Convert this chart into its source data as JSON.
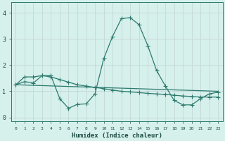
{
  "xlabel": "Humidex (Indice chaleur)",
  "bg_color": "#d6f0ec",
  "line_color": "#2d7a6e",
  "grid_color": "#c8dbd8",
  "xticks": [
    0,
    1,
    2,
    3,
    4,
    5,
    6,
    7,
    8,
    9,
    10,
    11,
    12,
    13,
    14,
    15,
    16,
    17,
    18,
    19,
    20,
    21,
    22,
    23
  ],
  "yticks": [
    0,
    1,
    2,
    3,
    4
  ],
  "xlim": [
    -0.5,
    23.5
  ],
  "ylim": [
    -0.15,
    4.4
  ],
  "line1_x": [
    0,
    1,
    2,
    3,
    4,
    5,
    6,
    7,
    8,
    9,
    10,
    11,
    12,
    13,
    14,
    15,
    16,
    17,
    18,
    19,
    20,
    21,
    22,
    23
  ],
  "line1_y": [
    1.25,
    1.55,
    1.55,
    1.6,
    1.6,
    0.72,
    0.35,
    0.5,
    0.52,
    0.9,
    2.25,
    3.1,
    3.78,
    3.82,
    3.55,
    2.75,
    1.8,
    1.2,
    0.65,
    0.48,
    0.48,
    0.72,
    0.9,
    0.97
  ],
  "line2_x": [
    0,
    23
  ],
  "line2_y": [
    1.25,
    1.0
  ],
  "line3_x": [
    0,
    1,
    2,
    3,
    4,
    5,
    6,
    7,
    8,
    9,
    10,
    11,
    12,
    13,
    14,
    15,
    16,
    17,
    18,
    19,
    20,
    21,
    22,
    23
  ],
  "line3_y": [
    1.25,
    1.37,
    1.32,
    1.6,
    1.55,
    1.45,
    1.35,
    1.25,
    1.2,
    1.15,
    1.1,
    1.05,
    1.0,
    0.98,
    0.95,
    0.92,
    0.9,
    0.88,
    0.85,
    0.82,
    0.8,
    0.78,
    0.78,
    0.78
  ]
}
